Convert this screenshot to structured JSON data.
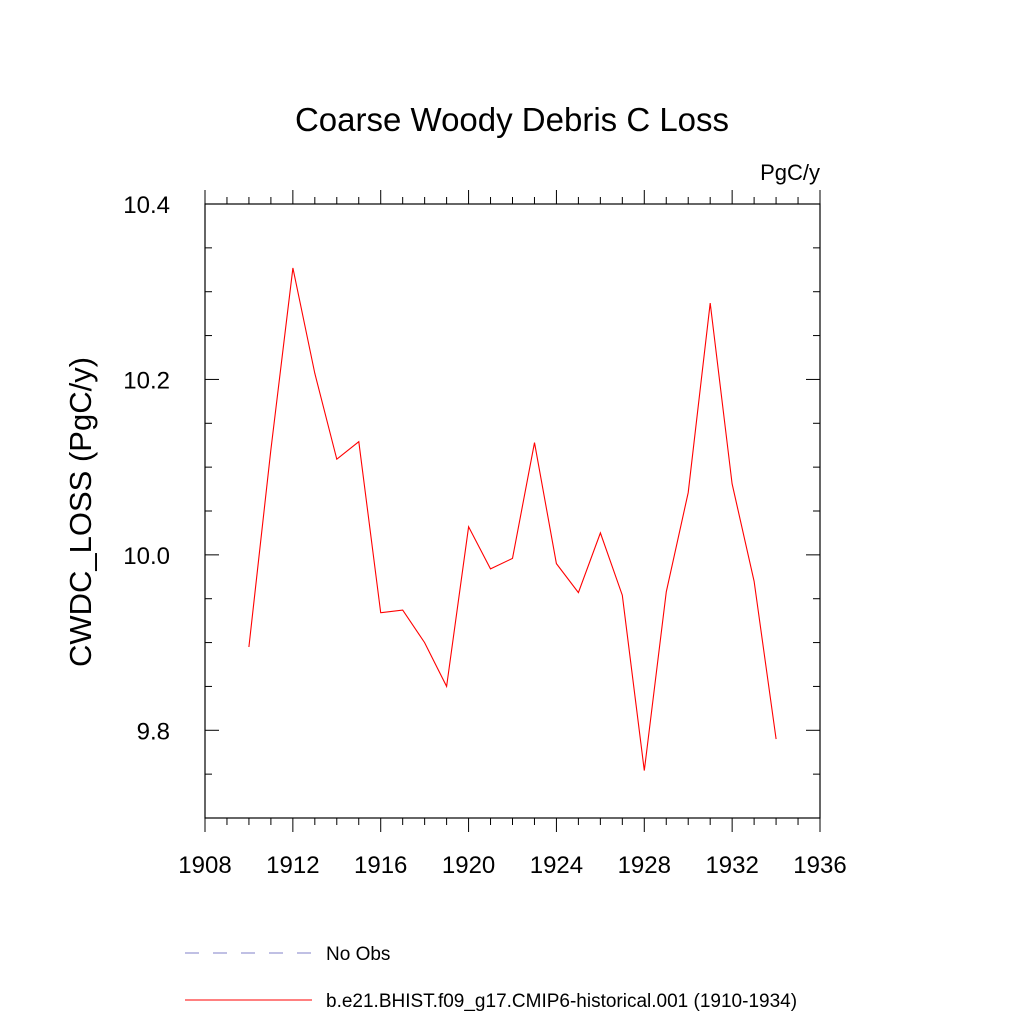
{
  "chart_data": {
    "type": "line",
    "title": "Coarse Woody Debris C Loss",
    "units": "PgC/y",
    "ylabel": "CWDC_LOSS  (PgC/y)",
    "xlabel": "",
    "xlim": [
      1908,
      1936
    ],
    "ylim": [
      9.7,
      10.4
    ],
    "x_ticks": [
      1908,
      1912,
      1916,
      1920,
      1924,
      1928,
      1932,
      1936
    ],
    "x_tick_labels": [
      "1908",
      "1912",
      "1916",
      "1920",
      "1924",
      "1928",
      "1932",
      "1936"
    ],
    "y_ticks": [
      9.8,
      10.0,
      10.2,
      10.4
    ],
    "y_tick_labels": [
      "9.8",
      "10.0",
      "10.2",
      "10.4"
    ],
    "grid": false,
    "legend_position": "bottom",
    "series": [
      {
        "name": "b.e21.BHIST.f09_g17.CMIP6-historical.001 (1910-1934)",
        "color": "#ff0000",
        "style": "solid",
        "x": [
          1910,
          1911,
          1912,
          1913,
          1914,
          1915,
          1916,
          1917,
          1918,
          1919,
          1920,
          1921,
          1922,
          1923,
          1924,
          1925,
          1926,
          1927,
          1928,
          1929,
          1930,
          1931,
          1932,
          1933,
          1934
        ],
        "y": [
          9.895,
          10.12,
          10.327,
          10.207,
          10.109,
          10.129,
          9.934,
          9.937,
          9.9,
          9.85,
          10.032,
          9.984,
          9.996,
          10.128,
          9.99,
          9.957,
          10.025,
          9.954,
          9.754,
          9.958,
          10.071,
          10.287,
          10.081,
          9.97,
          9.79
        ]
      },
      {
        "name": "No Obs",
        "color": "#8080c8",
        "style": "dashed",
        "x": [],
        "y": []
      }
    ]
  }
}
